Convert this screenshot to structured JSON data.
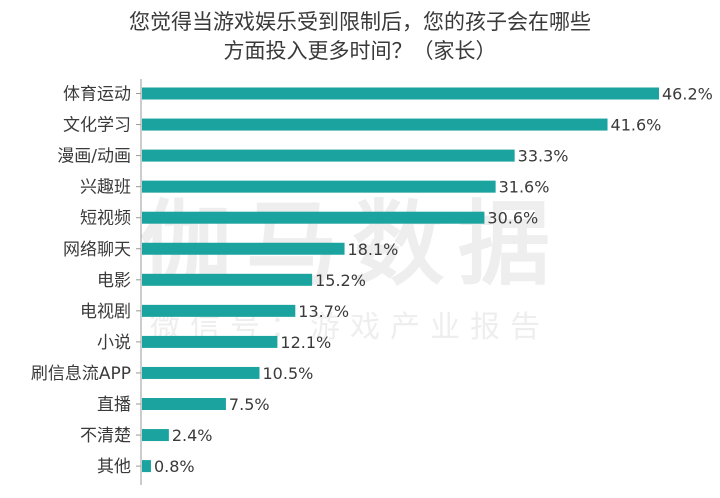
{
  "title_lines": [
    "您觉得当游戏娱乐受到限制后，您的孩子会在哪些",
    "方面投入更多时间？（家长）"
  ],
  "watermark": {
    "main": "伽马数据",
    "sub": "微信号：游戏产业报告"
  },
  "colors": {
    "bar": "#1aa39f",
    "axis": "#999999"
  },
  "chart_data": {
    "type": "bar",
    "orientation": "horizontal",
    "title": "您觉得当游戏娱乐受到限制后，您的孩子会在哪些方面投入更多时间？（家长）",
    "categories": [
      "体育运动",
      "文化学习",
      "漫画/动画",
      "兴趣班",
      "短视频",
      "网络聊天",
      "电影",
      "电视剧",
      "小说",
      "刷信息流APP",
      "直播",
      "不清楚",
      "其他"
    ],
    "values": [
      46.2,
      41.6,
      33.3,
      31.6,
      30.6,
      18.1,
      15.2,
      13.7,
      12.1,
      10.5,
      7.5,
      2.4,
      0.8
    ],
    "value_labels": [
      "46.2%",
      "41.6%",
      "33.3%",
      "31.6%",
      "30.6%",
      "18.1%",
      "15.2%",
      "13.7%",
      "12.1%",
      "10.5%",
      "7.5%",
      "2.4%",
      "0.8%"
    ],
    "unit": "%",
    "grid": false,
    "legend": "none"
  }
}
